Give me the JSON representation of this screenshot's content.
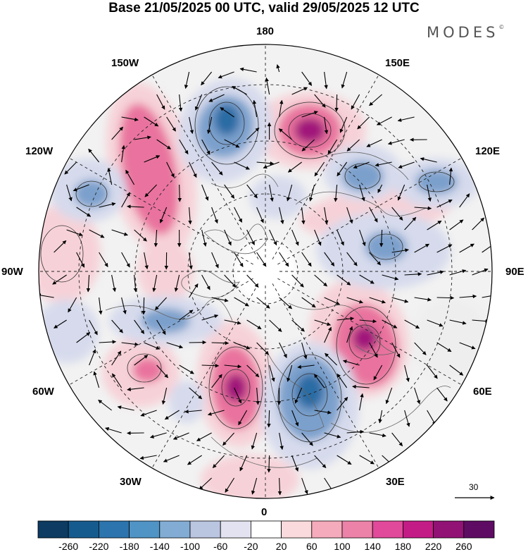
{
  "header": {
    "title": "Base 21/05/2025 00 UTC, valid 29/05/2025 12 UTC",
    "brand": "MODES",
    "brand_mark": "©"
  },
  "map": {
    "projection": "north-polar-stereographic",
    "longitude_labels": {
      "top": "180",
      "bottom": "0",
      "left": "90W",
      "right": "90E",
      "upper_left_near": "150W",
      "upper_left_far": "120W",
      "upper_right_near": "150E",
      "upper_right_far": "120E",
      "lower_left_far": "60W",
      "lower_left_near": "30W",
      "lower_right_far": "60E",
      "lower_right_near": "30E"
    },
    "wind_scale_value": "30",
    "anomaly_palette": {
      "strong_positive": "#a0197a",
      "positive": "#e9739e",
      "weak_positive": "#f6d2d8",
      "neutral": "#eeeeee",
      "weak_negative": "#d6daec",
      "negative": "#7ba0cc",
      "strong_negative": "#2b6ca4"
    }
  },
  "colorbar": {
    "colors": [
      "#0d3b61",
      "#165b8e",
      "#2b74ad",
      "#4f94c5",
      "#82acd4",
      "#bac5e0",
      "#e2e2f0",
      "#ffffff",
      "#fadadc",
      "#f5abbb",
      "#ec82a8",
      "#e1499a",
      "#c31c86",
      "#911175",
      "#5e0c63"
    ],
    "labels": [
      "-260",
      "-220",
      "-180",
      "-140",
      "-100",
      "-60",
      "-20",
      "20",
      "60",
      "100",
      "140",
      "180",
      "220",
      "260"
    ]
  }
}
